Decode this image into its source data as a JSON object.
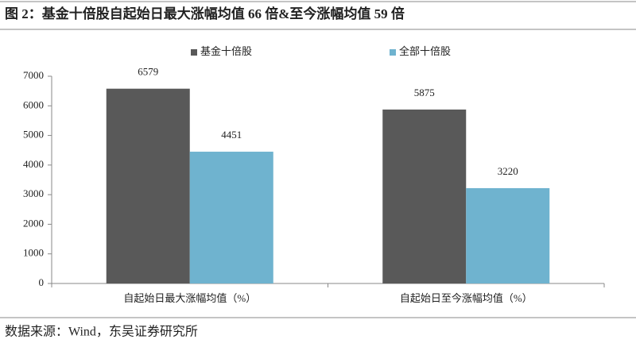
{
  "chart_data": {
    "type": "bar",
    "title": "图 2：基金十倍股自起始日最大涨幅均值 66 倍&至今涨幅均值 59 倍",
    "source": "数据来源：Wind，东吴证券研究所",
    "categories": [
      "自起始日最大涨幅均值（%）",
      "自起始日至今涨幅均值（%）"
    ],
    "series": [
      {
        "name": "基金十倍股",
        "color": "#595959",
        "values": [
          6579,
          5875
        ]
      },
      {
        "name": "全部十倍股",
        "color": "#6fb3cf",
        "values": [
          4451,
          3220
        ]
      }
    ],
    "ylim": [
      0,
      7000
    ],
    "yticks": [
      0,
      1000,
      2000,
      3000,
      4000,
      5000,
      6000,
      7000
    ],
    "legend": "top",
    "grid": false
  }
}
